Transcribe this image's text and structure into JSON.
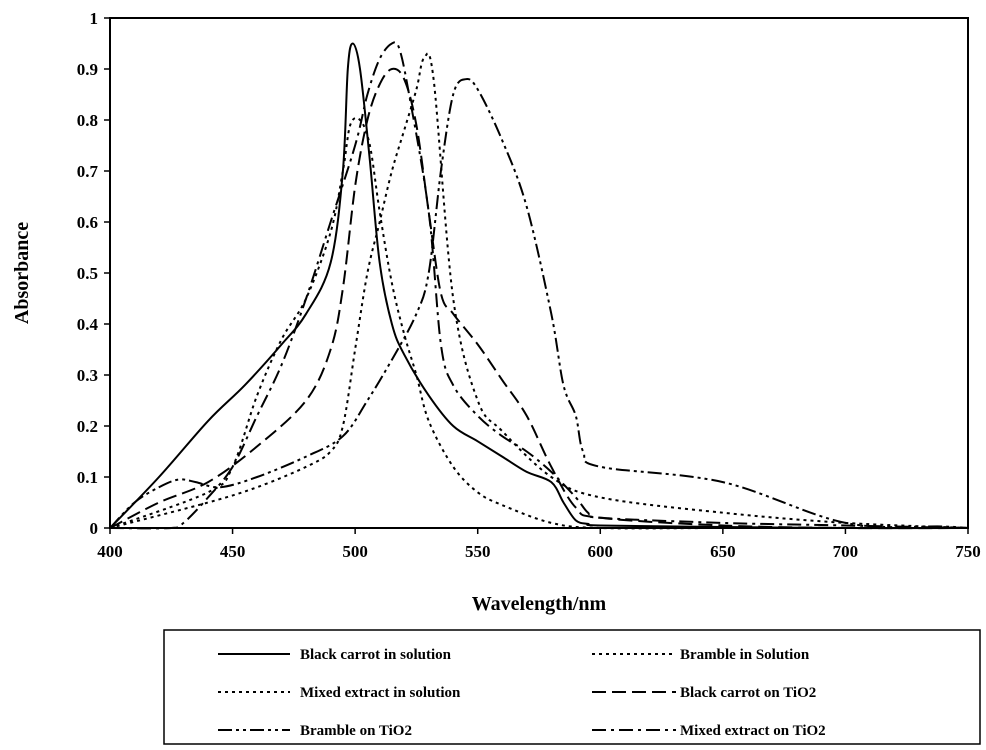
{
  "chart_data": {
    "type": "line",
    "title": "",
    "xlabel": "Wavelength/nm",
    "ylabel": "Absorbance",
    "xlim": [
      400,
      750
    ],
    "ylim": [
      0,
      1
    ],
    "xticks": [
      400,
      450,
      500,
      550,
      600,
      650,
      700,
      750
    ],
    "xtick_labels": [
      "400",
      "450",
      "500",
      "550",
      "600",
      "650",
      "700",
      "750"
    ],
    "yticks": [
      0,
      0.1,
      0.2,
      0.3,
      0.4,
      0.5,
      0.6,
      0.7,
      0.8,
      0.9,
      1
    ],
    "ytick_labels": [
      "0",
      "0.1",
      "0.2",
      "0.3",
      "0.4",
      "0.5",
      "0.6",
      "0.7",
      "0.8",
      "0.9",
      "1"
    ],
    "grid": false,
    "legend_position": "bottom",
    "series": [
      {
        "name": "Black carrot in solution",
        "style": "solid",
        "x": [
          400,
          420,
          440,
          455,
          470,
          480,
          490,
          495,
          497,
          499,
          502,
          506,
          510,
          515,
          520,
          530,
          540,
          550,
          560,
          570,
          580,
          585,
          590,
          595,
          600,
          650,
          700,
          750
        ],
        "y": [
          0,
          0.1,
          0.21,
          0.28,
          0.36,
          0.42,
          0.52,
          0.7,
          0.9,
          0.95,
          0.9,
          0.72,
          0.52,
          0.4,
          0.34,
          0.26,
          0.2,
          0.17,
          0.14,
          0.11,
          0.09,
          0.05,
          0.015,
          0.008,
          0.005,
          0.002,
          0,
          0
        ]
      },
      {
        "name": "Bramble in Solution",
        "style": "dotted",
        "x": [
          400,
          440,
          460,
          480,
          490,
          495,
          500,
          505,
          510,
          515,
          520,
          525,
          528,
          532,
          540,
          550,
          560,
          580,
          600,
          650,
          700,
          750
        ],
        "y": [
          0,
          0.05,
          0.08,
          0.12,
          0.15,
          0.2,
          0.35,
          0.5,
          0.6,
          0.7,
          0.78,
          0.86,
          0.92,
          0.88,
          0.45,
          0.25,
          0.19,
          0.1,
          0.06,
          0.03,
          0.01,
          0
        ]
      },
      {
        "name": "Mixed extract in solution",
        "style": "dotted",
        "x": [
          400,
          440,
          450,
          460,
          470,
          480,
          490,
          495,
          498,
          502,
          506,
          510,
          515,
          520,
          525,
          530,
          540,
          550,
          560,
          580,
          600,
          650,
          700,
          750
        ],
        "y": [
          0,
          0.07,
          0.12,
          0.26,
          0.37,
          0.45,
          0.58,
          0.7,
          0.79,
          0.8,
          0.75,
          0.62,
          0.48,
          0.38,
          0.3,
          0.21,
          0.12,
          0.07,
          0.045,
          0.01,
          0,
          0,
          0,
          0
        ]
      },
      {
        "name": "Black carrot on TiO2",
        "style": "dashed",
        "x": [
          400,
          420,
          440,
          460,
          480,
          490,
          495,
          500,
          505,
          510,
          515,
          520,
          525,
          530,
          535,
          540,
          550,
          560,
          570,
          580,
          590,
          600,
          650,
          700,
          750
        ],
        "y": [
          0,
          0.05,
          0.09,
          0.16,
          0.25,
          0.35,
          0.47,
          0.67,
          0.8,
          0.87,
          0.9,
          0.88,
          0.79,
          0.62,
          0.46,
          0.42,
          0.36,
          0.29,
          0.22,
          0.12,
          0.04,
          0.02,
          0.005,
          0,
          0
        ]
      },
      {
        "name": "Bramble on TiO2",
        "style": "dashdotdot",
        "x": [
          400,
          410,
          420,
          428,
          435,
          445,
          460,
          480,
          495,
          505,
          515,
          525,
          530,
          535,
          540,
          545,
          550,
          560,
          570,
          580,
          585,
          590,
          593,
          600,
          650,
          700,
          740,
          750
        ],
        "y": [
          0,
          0.05,
          0.08,
          0.095,
          0.09,
          0.08,
          0.1,
          0.14,
          0.18,
          0.25,
          0.33,
          0.42,
          0.5,
          0.7,
          0.85,
          0.88,
          0.86,
          0.76,
          0.63,
          0.42,
          0.28,
          0.22,
          0.15,
          0.12,
          0.09,
          0.01,
          0.003,
          0
        ]
      },
      {
        "name": "Mixed extract on TiO2",
        "style": "dashdot",
        "x": [
          400,
          425,
          430,
          440,
          450,
          460,
          470,
          480,
          490,
          500,
          505,
          510,
          515,
          518,
          522,
          530,
          535,
          540,
          550,
          560,
          570,
          580,
          590,
          595,
          600,
          650,
          700,
          750
        ],
        "y": [
          0,
          0,
          0.01,
          0.06,
          0.12,
          0.22,
          0.32,
          0.45,
          0.6,
          0.75,
          0.85,
          0.92,
          0.95,
          0.94,
          0.85,
          0.62,
          0.36,
          0.28,
          0.22,
          0.18,
          0.15,
          0.11,
          0.06,
          0.03,
          0.02,
          0.01,
          0.005,
          0
        ]
      }
    ]
  }
}
